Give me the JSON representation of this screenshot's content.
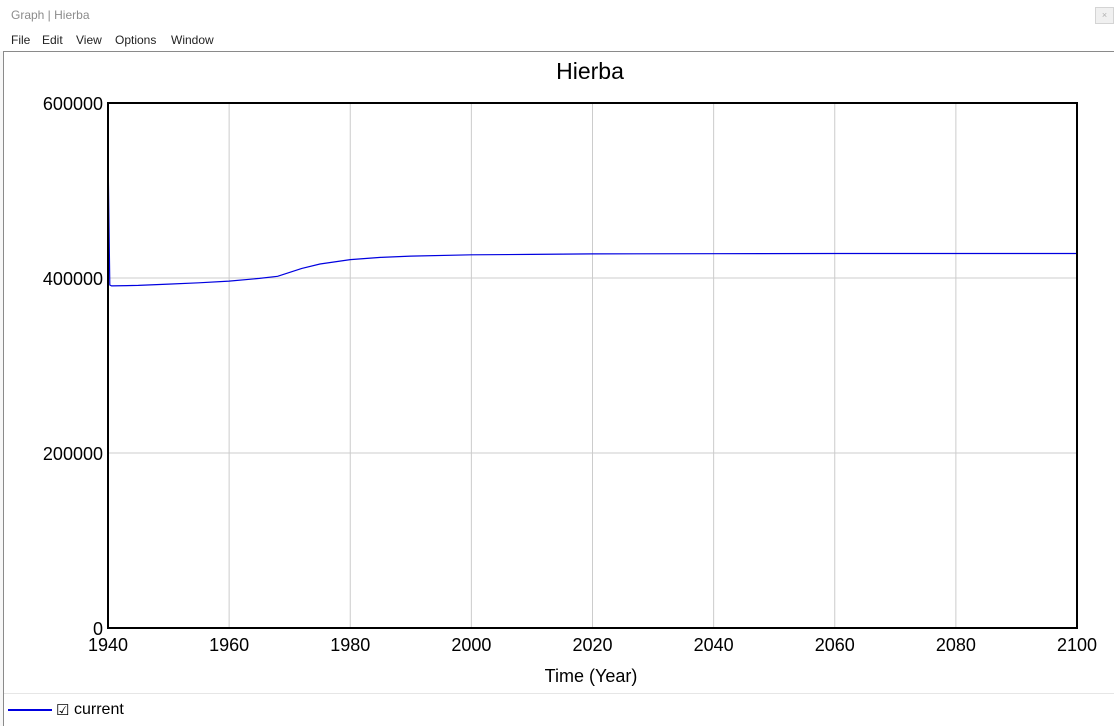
{
  "window": {
    "title": "Graph | Hierba",
    "close_glyph": "×"
  },
  "menu": {
    "items": [
      "File",
      "Edit",
      "View",
      "Options",
      "Window"
    ]
  },
  "legend": {
    "checkbox_glyph": "☑",
    "series_label": "current",
    "series_color": "#0000e0"
  },
  "chart_data": {
    "type": "line",
    "title": "Hierba",
    "xlabel": "Time (Year)",
    "ylabel": "",
    "xlim": [
      1940,
      2100
    ],
    "ylim": [
      0,
      600000
    ],
    "x_ticks": [
      1940,
      1960,
      1980,
      2000,
      2020,
      2040,
      2060,
      2080,
      2100
    ],
    "y_ticks": [
      0,
      200000,
      400000,
      600000
    ],
    "grid": true,
    "legend_position": "bottom-left",
    "series": [
      {
        "name": "current",
        "color": "#0000e0",
        "x": [
          1940,
          1940.3,
          1940.6,
          1945,
          1950,
          1955,
          1960,
          1965,
          1968,
          1972,
          1975,
          1980,
          1985,
          1990,
          2000,
          2010,
          2020,
          2040,
          2060,
          2080,
          2100
        ],
        "y": [
          545000,
          392000,
          391000,
          391500,
          393000,
          394500,
          396500,
          399500,
          402000,
          411000,
          416000,
          421000,
          423500,
          425000,
          426500,
          427000,
          427500,
          427800,
          428000,
          428000,
          428000
        ]
      }
    ]
  }
}
